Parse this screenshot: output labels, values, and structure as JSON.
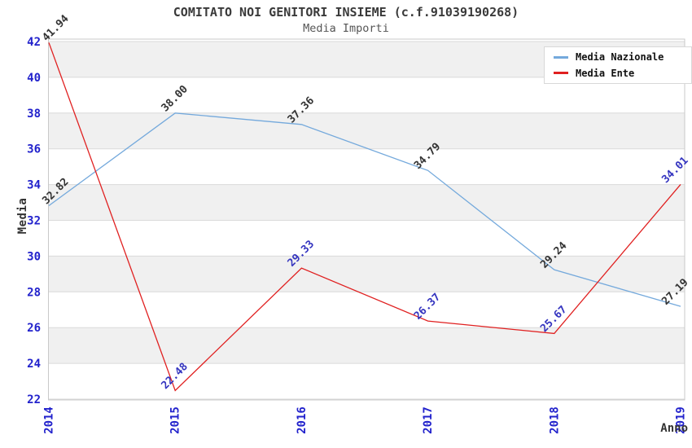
{
  "chart_data": {
    "type": "line",
    "title": "COMITATO NOI GENITORI INSIEME (c.f.91039190268)",
    "subtitle": "Media Importi",
    "xlabel": "Anno",
    "ylabel": "Media",
    "x": [
      "2014",
      "2015",
      "2016",
      "2017",
      "2018",
      "2019"
    ],
    "ylim": [
      22,
      42
    ],
    "y_ticks": [
      22,
      24,
      26,
      28,
      30,
      32,
      34,
      36,
      38,
      40,
      42
    ],
    "grid": "horizontal",
    "legend_position": "top-right",
    "series": [
      {
        "name": "Media Nazionale",
        "color": "#74a9dc",
        "values": [
          32.82,
          38.0,
          37.36,
          34.79,
          29.24,
          27.19
        ],
        "labels": [
          "32.82",
          "38.00",
          "37.36",
          "34.79",
          "29.24",
          "27.19"
        ],
        "label_colors": [
          "#333333",
          "#333333",
          "#333333",
          "#333333",
          "#333333",
          "#333333"
        ]
      },
      {
        "name": "Media Ente",
        "color": "#e02020",
        "values": [
          41.94,
          22.48,
          29.33,
          26.37,
          25.67,
          34.01
        ],
        "labels": [
          "41.94",
          "22.48",
          "29.33",
          "26.37",
          "25.67",
          "34.01"
        ],
        "label_colors": [
          "#333333",
          "#3434bf",
          "#3434bf",
          "#3434bf",
          "#3434bf",
          "#3434bf"
        ]
      }
    ],
    "colors": {
      "tick_label": "#2222cc",
      "axis_title": "#333333",
      "band": "#f0f0f0",
      "grid": "#dadada",
      "border": "#c9c9c9",
      "background": "#ffffff"
    }
  }
}
